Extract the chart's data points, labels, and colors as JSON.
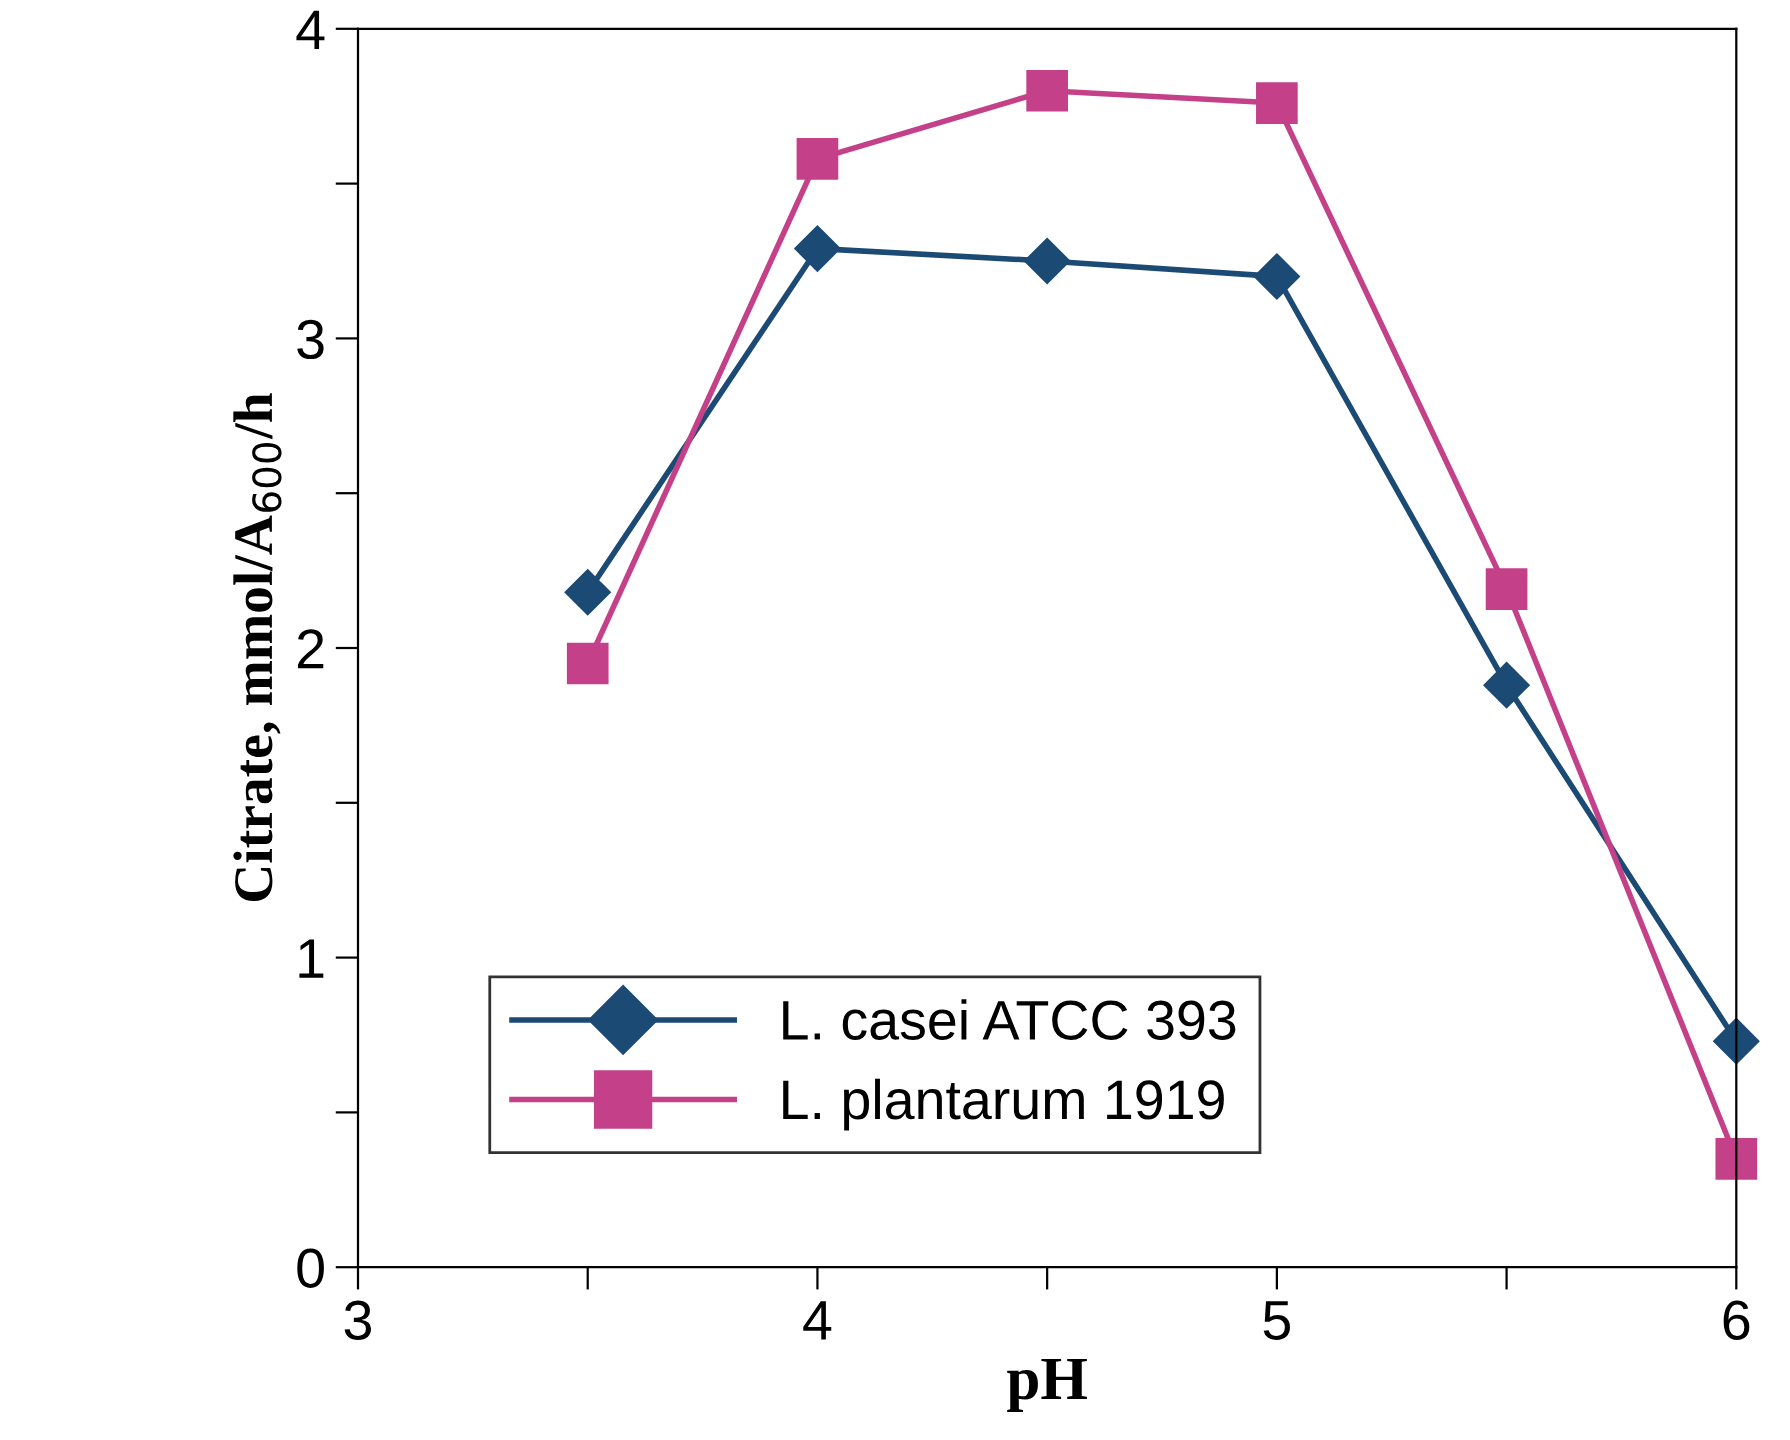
{
  "chart_data": {
    "type": "line",
    "xlabel": "pH",
    "ylabel": "Citrate, mmol/A$_{600}$/h",
    "x": [
      3.5,
      4,
      4.5,
      5,
      5.5,
      6
    ],
    "series": [
      {
        "name": "L. casei ATCC 393",
        "color": "#1b4a74",
        "marker": "diamond",
        "values": [
          2.18,
          3.29,
          3.25,
          3.2,
          1.88,
          0.73
        ]
      },
      {
        "name": "L. plantarum 1919",
        "color": "#c4418a",
        "marker": "square",
        "values": [
          1.95,
          3.58,
          3.8,
          3.76,
          2.19,
          0.35
        ]
      }
    ],
    "xlim": [
      3,
      6
    ],
    "xticks": [
      3,
      {
        "value": 3.5,
        "label": null
      },
      4,
      {
        "value": 4.5,
        "label": null
      },
      5,
      {
        "value": 5.5,
        "label": null
      },
      6
    ],
    "ylim": [
      0,
      4
    ],
    "yticks": [
      0,
      {
        "value": 0.5,
        "label": null
      },
      1,
      {
        "value": 1.5,
        "label": null
      },
      2,
      {
        "value": 2.5,
        "label": null
      },
      3,
      {
        "value": 3.5,
        "label": null
      },
      4
    ],
    "grid": false,
    "legend": "lower center",
    "line_style": "solid"
  }
}
